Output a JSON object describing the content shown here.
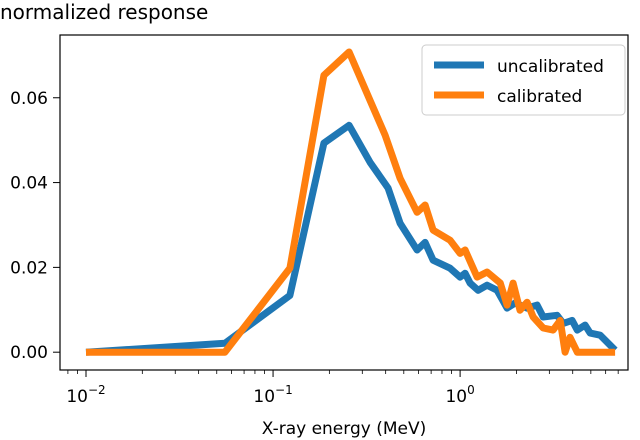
{
  "chart_data": {
    "type": "line",
    "title": "normalized response",
    "xlabel": "X-ray energy (MeV)",
    "ylabel": "",
    "xscale": "log",
    "xlim": [
      0.00726,
      7.9
    ],
    "ylim": [
      -0.0042,
      0.0748
    ],
    "grid": false,
    "legend_position": "top-right",
    "x_ticks": [
      {
        "value": 0.01,
        "base": "10",
        "exp": "−2"
      },
      {
        "value": 0.1,
        "base": "10",
        "exp": "−1"
      },
      {
        "value": 1,
        "base": "10",
        "exp": "0"
      }
    ],
    "y_ticks": [
      {
        "value": 0.0,
        "label": "0.00"
      },
      {
        "value": 0.02,
        "label": "0.02"
      },
      {
        "value": 0.04,
        "label": "0.04"
      },
      {
        "value": 0.06,
        "label": "0.06"
      }
    ],
    "series": [
      {
        "name": "uncalibrated",
        "color": "#1f77b4",
        "x": [
          0.01,
          0.0553,
          0.123,
          0.187,
          0.255,
          0.33,
          0.412,
          0.478,
          0.589,
          0.65,
          0.717,
          0.884,
          1.0,
          1.064,
          1.131,
          1.248,
          1.394,
          1.577,
          1.783,
          1.968,
          2.28,
          2.58,
          2.78,
          3.3,
          3.56,
          3.97,
          4.23,
          4.66,
          4.96,
          5.61,
          6.74
        ],
        "y": [
          0,
          0.0021,
          0.0134,
          0.0493,
          0.0535,
          0.0448,
          0.0387,
          0.0304,
          0.0241,
          0.0259,
          0.0217,
          0.0198,
          0.0177,
          0.0186,
          0.0163,
          0.0146,
          0.0158,
          0.0146,
          0.0104,
          0.0116,
          0.0104,
          0.0111,
          0.0083,
          0.0087,
          0.0068,
          0.0075,
          0.0052,
          0.0064,
          0.0045,
          0.004,
          0.0005
        ]
      },
      {
        "name": "calibrated",
        "color": "#ff7f0e",
        "x": [
          0.01,
          0.0553,
          0.123,
          0.187,
          0.255,
          0.33,
          0.397,
          0.478,
          0.589,
          0.65,
          0.717,
          0.884,
          1.0,
          1.064,
          1.233,
          1.394,
          1.64,
          1.783,
          1.92,
          2.09,
          2.28,
          2.46,
          2.78,
          3.14,
          3.43,
          3.64,
          3.87,
          4.23,
          4.78,
          6.74
        ],
        "y": [
          0,
          0,
          0.0198,
          0.0653,
          0.0708,
          0.0594,
          0.0512,
          0.041,
          0.033,
          0.0347,
          0.0288,
          0.0264,
          0.0233,
          0.0241,
          0.0177,
          0.0189,
          0.0163,
          0.0111,
          0.0163,
          0.0099,
          0.0118,
          0.0083,
          0.0057,
          0.0052,
          0.0075,
          0,
          0.0035,
          0,
          0,
          0
        ]
      }
    ]
  }
}
